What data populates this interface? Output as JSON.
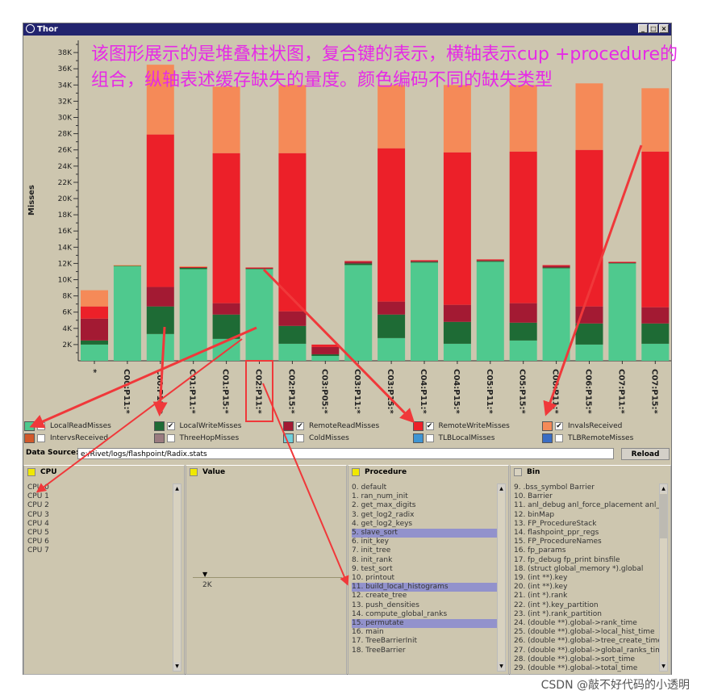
{
  "window": {
    "title": "Thor",
    "buttons": [
      "_",
      "□",
      "×"
    ]
  },
  "annotation": "该图形展示的是堆叠柱状图，复合键的表示，横轴表示cup +procedure的组合，纵轴表述缓存缺失的量度。颜色编码不同的缺失类型",
  "chart_data": {
    "type": "bar",
    "stacked": true,
    "ylabel": "Misses",
    "ylim": [
      0,
      39.5
    ],
    "y_unit": "K",
    "yticks": [
      "2K",
      "4K",
      "6K",
      "8K",
      "10K",
      "12K",
      "14K",
      "16K",
      "18K",
      "20K",
      "22K",
      "24K",
      "26K",
      "28K",
      "30K",
      "32K",
      "34K",
      "36K",
      "38K"
    ],
    "categories": [
      "*",
      "C00:P11:*",
      "C00:P15:*",
      "C01:P11:*",
      "C01:P15:*",
      "C02:P11:*",
      "C02:P15:*",
      "C03:P05:*",
      "C03:P11:*",
      "C03:P15:*",
      "C04:P11:*",
      "C04:P15:*",
      "C05:P11:*",
      "C05:P15:*",
      "C06:P11:*",
      "C06:P15:*",
      "C07:P11:*",
      "C07:P15:*"
    ],
    "series": [
      {
        "name": "LocalReadMisses",
        "color": "#4fc98e",
        "values": [
          2.0,
          11.7,
          3.3,
          11.3,
          2.7,
          11.3,
          2.1,
          0.6,
          11.8,
          2.8,
          12.1,
          2.1,
          12.2,
          2.5,
          11.4,
          2.0,
          12.0,
          2.1
        ]
      },
      {
        "name": "LocalWriteMisses",
        "color": "#1e6b35",
        "values": [
          0.5,
          0.05,
          3.4,
          0.2,
          3.0,
          0.1,
          2.2,
          0.2,
          0.2,
          2.9,
          0.1,
          2.7,
          0.1,
          2.2,
          0.1,
          2.6,
          0.1,
          2.5
        ]
      },
      {
        "name": "RemoteReadMisses",
        "color": "#a31a33",
        "values": [
          2.7,
          0.0,
          2.4,
          0.05,
          1.4,
          0.05,
          1.8,
          0.9,
          0.2,
          1.6,
          0.1,
          2.1,
          0.1,
          2.4,
          0.2,
          2.1,
          0.05,
          2.0
        ]
      },
      {
        "name": "RemoteWriteMisses",
        "color": "#ec2029",
        "values": [
          1.5,
          0.0,
          18.8,
          0.05,
          18.5,
          0.05,
          19.5,
          0.3,
          0.1,
          18.9,
          0.1,
          18.8,
          0.1,
          18.7,
          0.1,
          19.3,
          0.05,
          19.2
        ]
      },
      {
        "name": "InvalsReceived",
        "color": "#f58a58",
        "values": [
          2.0,
          0.05,
          8.6,
          0.05,
          8.2,
          0.0,
          8.4,
          0.0,
          0.0,
          7.8,
          0.0,
          8.3,
          0.0,
          8.2,
          0.0,
          8.2,
          0.0,
          7.8
        ]
      }
    ],
    "legend": [
      {
        "name": "LocalReadMisses",
        "color": "#4fc98e",
        "checked": true
      },
      {
        "name": "LocalWriteMisses",
        "color": "#1e6b35",
        "checked": true
      },
      {
        "name": "RemoteReadMisses",
        "color": "#a31a33",
        "checked": true
      },
      {
        "name": "RemoteWriteMisses",
        "color": "#ec2029",
        "checked": true
      },
      {
        "name": "InvalsReceived",
        "color": "#f58a58",
        "checked": true
      },
      {
        "name": "IntervsReceived",
        "color": "#d2592a",
        "checked": false
      },
      {
        "name": "ThreeHopMisses",
        "color": "#9b7b80",
        "checked": false
      },
      {
        "name": "ColdMisses",
        "color": "#6fd0dc",
        "checked": false
      },
      {
        "name": "TLBLocalMisses",
        "color": "#3e95d4",
        "checked": false
      },
      {
        "name": "TLBRemoteMisses",
        "color": "#3a6dc4",
        "checked": false
      }
    ]
  },
  "data_source": {
    "label": "Data Source:",
    "value": "e:/Rivet/logs/flashpoint/Radix.stats",
    "reload": "Reload"
  },
  "panels": {
    "cpu": {
      "title": "CPU",
      "items": [
        "CPU 0",
        "CPU 1",
        "CPU 2",
        "CPU 3",
        "CPU 4",
        "CPU 5",
        "CPU 6",
        "CPU 7"
      ]
    },
    "value": {
      "title": "Value",
      "marker": "2K"
    },
    "procedure": {
      "title": "Procedure",
      "selected": [
        5,
        11,
        15
      ],
      "items": [
        "0. default",
        "1. ran_num_init",
        "2. get_max_digits",
        "3. get_log2_radix",
        "4. get_log2_keys",
        "5. slave_sort",
        "6. init_key",
        "7. init_tree",
        "8. init_rank",
        "9. test_sort",
        "10. printout",
        "11. build_local_histograms",
        "12. create_tree",
        "13. push_densities",
        "14. compute_global_ranks",
        "15. permutate",
        "16. main",
        "17. TreeBarrierInit",
        "18. TreeBarrier"
      ]
    },
    "bin": {
      "title": "Bin",
      "items": [
        "9. .bss_symbol Barrier",
        "10. Barrier",
        "11. anl_debug anl_force_placement anl_p",
        "12. binMap",
        "13. FP_ProcedureStack",
        "14. flashpoint_ppr_regs",
        "15. FP_ProcedureNames",
        "16. fp_params",
        "17. fp_debug fp_print binsfile",
        "18. (struct global_memory *).global",
        "19. (int **).key",
        "20. (int **).key",
        "21. (int *).rank",
        "22. (int *).key_partition",
        "23. (int *).rank_partition",
        "24. (double **).global->rank_time",
        "25. (double **).global->local_hist_time",
        "26. (double **).global->tree_create_time",
        "27. (double **).global->global_ranks_time",
        "28. (double **).global->sort_time",
        "29. (double **).global->total_time"
      ]
    }
  },
  "watermark": "CSDN @敲不好代码的小透明"
}
